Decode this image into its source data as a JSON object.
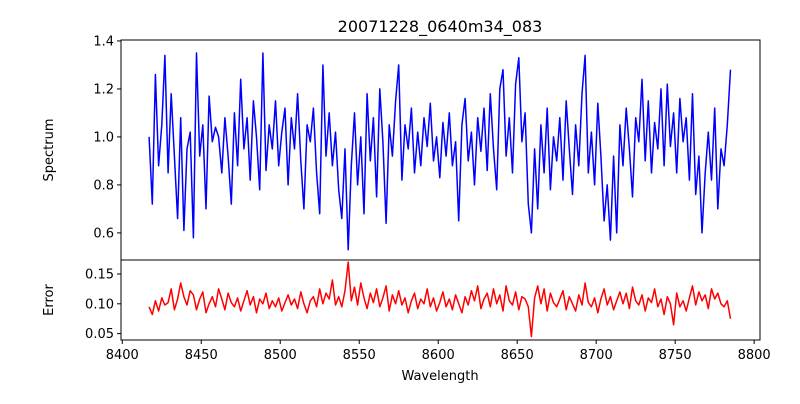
{
  "chart_data": [
    {
      "type": "line",
      "title": "20071228_0640m34_083",
      "xlabel": "",
      "ylabel": "Spectrum",
      "xlim": [
        8399.2,
        8803.7
      ],
      "ylim": [
        0.487,
        1.404
      ],
      "x_ticks": [
        "8400",
        "8450",
        "8500",
        "8550",
        "8600",
        "8650",
        "8700",
        "8750",
        "8800"
      ],
      "y_ticks": [
        "0.6",
        "0.8",
        "1.0",
        "1.2",
        "1.4"
      ],
      "color": "#0000ff",
      "x_start": 8417,
      "x_step": 2,
      "values": [
        1.0,
        0.72,
        1.26,
        0.88,
        1.05,
        1.34,
        0.85,
        1.18,
        0.92,
        0.66,
        1.08,
        0.61,
        0.95,
        1.02,
        0.58,
        1.35,
        0.92,
        1.05,
        0.7,
        1.17,
        0.98,
        1.04,
        1.0,
        0.85,
        1.08,
        0.92,
        0.72,
        1.1,
        0.88,
        1.24,
        0.95,
        1.08,
        0.82,
        1.15,
        1.0,
        0.78,
        1.35,
        0.86,
        1.05,
        0.95,
        1.15,
        0.88,
        1.02,
        1.12,
        0.8,
        1.08,
        0.95,
        1.18,
        0.9,
        0.7,
        1.05,
        0.98,
        1.12,
        0.85,
        0.68,
        1.3,
        0.92,
        1.1,
        0.88,
        1.02,
        0.78,
        0.66,
        0.95,
        0.53,
        0.88,
        1.1,
        0.8,
        1.0,
        0.68,
        1.18,
        0.9,
        1.08,
        0.75,
        1.2,
        0.98,
        0.64,
        1.05,
        0.92,
        1.15,
        1.3,
        0.82,
        1.05,
        0.95,
        1.12,
        0.85,
        1.02,
        0.88,
        1.08,
        0.96,
        1.14,
        0.9,
        1.0,
        0.83,
        1.06,
        0.92,
        1.1,
        0.88,
        0.98,
        0.65,
        1.05,
        1.16,
        0.9,
        1.02,
        0.8,
        1.08,
        0.94,
        1.12,
        0.86,
        1.18,
        0.95,
        0.78,
        1.2,
        1.28,
        0.92,
        1.08,
        0.85,
        1.22,
        1.33,
        0.98,
        1.1,
        0.72,
        0.6,
        0.95,
        0.7,
        1.05,
        0.85,
        1.12,
        0.78,
        1.0,
        0.9,
        1.08,
        0.82,
        1.15,
        0.95,
        0.76,
        1.05,
        0.88,
        1.18,
        1.34,
        0.85,
        1.02,
        0.8,
        1.14,
        0.92,
        0.65,
        0.8,
        0.57,
        0.92,
        0.6,
        1.05,
        0.88,
        1.12,
        0.95,
        0.75,
        1.08,
        0.98,
        1.24,
        0.9,
        1.15,
        0.85,
        1.06,
        0.95,
        1.2,
        0.88,
        1.22,
        0.96,
        1.1,
        0.85,
        1.16,
        0.98,
        1.08,
        0.82,
        1.18,
        0.76,
        0.92,
        0.6,
        0.85,
        1.02,
        0.82,
        1.12,
        0.7,
        0.95,
        0.88,
        1.05,
        1.28
      ]
    },
    {
      "type": "line",
      "title": "",
      "xlabel": "Wavelength",
      "ylabel": "Error",
      "xlim": [
        8399.2,
        8803.7
      ],
      "ylim": [
        0.0393,
        0.1735
      ],
      "x_ticks": [
        "8400",
        "8450",
        "8500",
        "8550",
        "8600",
        "8650",
        "8700",
        "8750",
        "8800"
      ],
      "y_ticks": [
        "0.05",
        "0.10",
        "0.15"
      ],
      "color": "#ff0000",
      "x_start": 8417,
      "x_step": 2,
      "values": [
        0.095,
        0.082,
        0.105,
        0.088,
        0.11,
        0.098,
        0.102,
        0.125,
        0.09,
        0.108,
        0.135,
        0.112,
        0.098,
        0.122,
        0.115,
        0.09,
        0.108,
        0.12,
        0.085,
        0.1,
        0.112,
        0.095,
        0.125,
        0.108,
        0.09,
        0.118,
        0.102,
        0.095,
        0.11,
        0.088,
        0.105,
        0.122,
        0.098,
        0.112,
        0.085,
        0.108,
        0.1,
        0.118,
        0.092,
        0.105,
        0.095,
        0.11,
        0.088,
        0.102,
        0.115,
        0.098,
        0.108,
        0.092,
        0.12,
        0.1,
        0.085,
        0.105,
        0.112,
        0.095,
        0.125,
        0.1,
        0.118,
        0.108,
        0.14,
        0.098,
        0.112,
        0.095,
        0.122,
        0.17,
        0.105,
        0.128,
        0.098,
        0.135,
        0.11,
        0.092,
        0.118,
        0.102,
        0.125,
        0.095,
        0.11,
        0.13,
        0.088,
        0.115,
        0.1,
        0.122,
        0.098,
        0.11,
        0.085,
        0.105,
        0.118,
        0.092,
        0.108,
        0.1,
        0.125,
        0.095,
        0.11,
        0.088,
        0.102,
        0.12,
        0.095,
        0.108,
        0.09,
        0.115,
        0.1,
        0.085,
        0.112,
        0.098,
        0.122,
        0.105,
        0.13,
        0.092,
        0.108,
        0.118,
        0.095,
        0.125,
        0.1,
        0.115,
        0.088,
        0.13,
        0.105,
        0.098,
        0.12,
        0.09,
        0.112,
        0.108,
        0.095,
        0.045,
        0.11,
        0.13,
        0.1,
        0.125,
        0.088,
        0.118,
        0.102,
        0.095,
        0.108,
        0.122,
        0.09,
        0.112,
        0.1,
        0.088,
        0.115,
        0.098,
        0.135,
        0.102,
        0.095,
        0.11,
        0.085,
        0.108,
        0.125,
        0.098,
        0.112,
        0.09,
        0.105,
        0.12,
        0.1,
        0.118,
        0.092,
        0.128,
        0.105,
        0.098,
        0.115,
        0.088,
        0.11,
        0.102,
        0.125,
        0.095,
        0.108,
        0.082,
        0.112,
        0.1,
        0.065,
        0.118,
        0.095,
        0.105,
        0.088,
        0.11,
        0.13,
        0.098,
        0.12,
        0.105,
        0.115,
        0.092,
        0.125,
        0.108,
        0.118,
        0.1,
        0.095,
        0.105,
        0.075
      ]
    }
  ]
}
